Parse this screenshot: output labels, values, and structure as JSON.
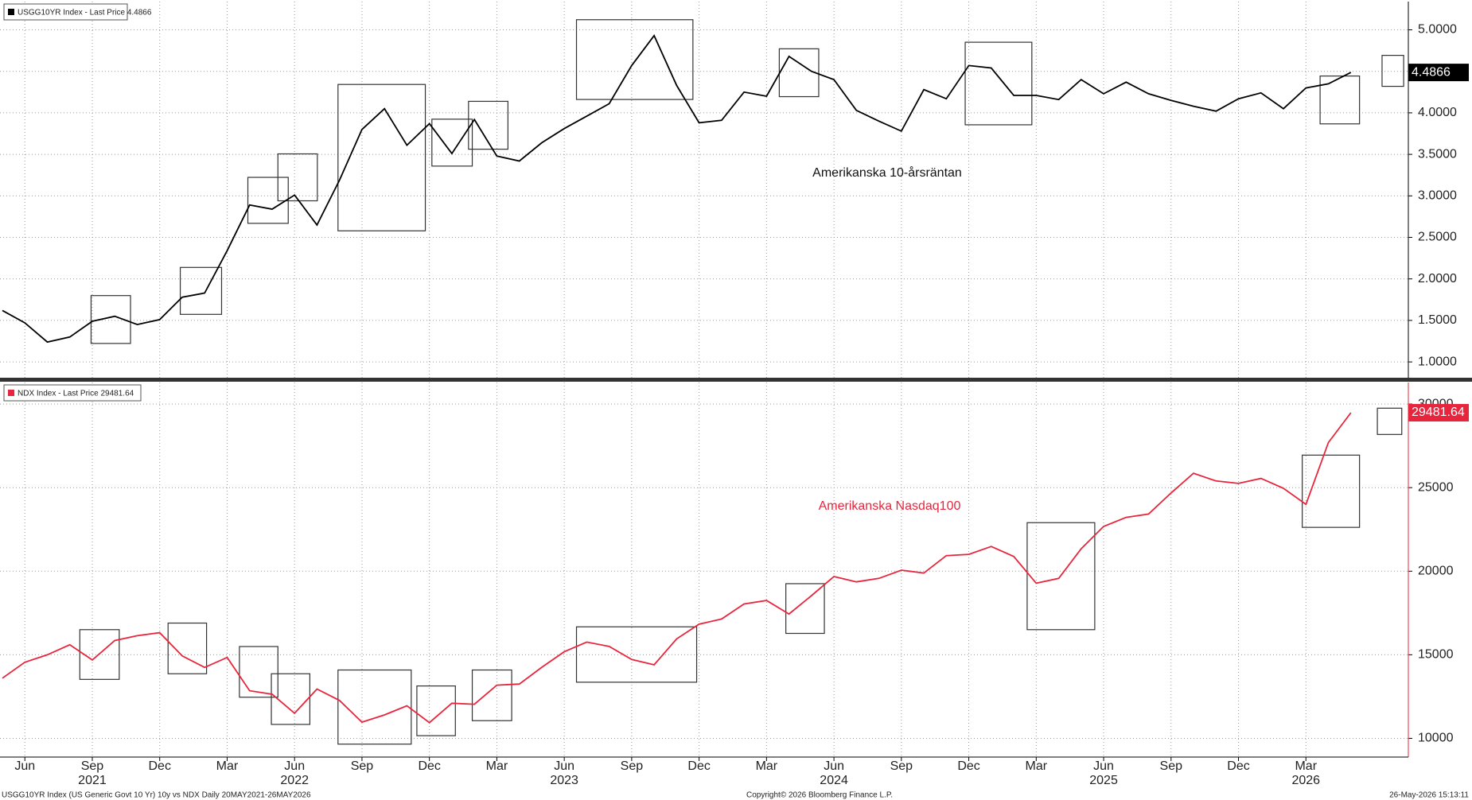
{
  "chart_data": [
    {
      "type": "line",
      "annotation": "Amerikanska 10-årsräntan",
      "x": [
        "2021-05",
        "2021-06",
        "2021-07",
        "2021-08",
        "2021-09",
        "2021-10",
        "2021-11",
        "2021-12",
        "2022-01",
        "2022-02",
        "2022-03",
        "2022-04",
        "2022-05",
        "2022-06",
        "2022-07",
        "2022-08",
        "2022-09",
        "2022-10",
        "2022-11",
        "2022-12",
        "2023-01",
        "2023-02",
        "2023-03",
        "2023-04",
        "2023-05",
        "2023-06",
        "2023-07",
        "2023-08",
        "2023-09",
        "2023-10",
        "2023-11",
        "2023-12",
        "2024-01",
        "2024-02",
        "2024-03",
        "2024-04",
        "2024-05",
        "2024-06",
        "2024-07",
        "2024-08",
        "2024-09",
        "2024-10",
        "2024-11",
        "2024-12",
        "2025-01",
        "2025-02",
        "2025-03",
        "2025-04",
        "2025-05",
        "2025-06",
        "2025-07",
        "2025-08",
        "2025-09",
        "2025-10",
        "2025-11",
        "2025-12",
        "2026-01",
        "2026-02",
        "2026-03",
        "2026-04",
        "2026-05"
      ],
      "xlim": [
        "2021-05",
        "2026-06"
      ],
      "series": [
        {
          "name": "USGG10YR Index - Last Price 4.4866",
          "color": "#000000",
          "values": [
            1.62,
            1.47,
            1.24,
            1.3,
            1.49,
            1.55,
            1.45,
            1.51,
            1.78,
            1.83,
            2.34,
            2.89,
            2.84,
            3.01,
            2.65,
            3.19,
            3.8,
            4.05,
            3.61,
            3.87,
            3.51,
            3.92,
            3.48,
            3.42,
            3.64,
            3.81,
            3.96,
            4.11,
            4.57,
            4.93,
            4.33,
            3.88,
            3.91,
            4.25,
            4.2,
            4.68,
            4.5,
            4.4,
            4.03,
            3.9,
            3.78,
            4.28,
            4.17,
            4.57,
            4.54,
            4.21,
            4.21,
            4.16,
            4.4,
            4.23,
            4.37,
            4.23,
            4.15,
            4.08,
            4.02,
            4.17,
            4.24,
            4.05,
            4.3,
            4.35,
            4.4866
          ]
        }
      ],
      "last_value": 4.4866,
      "ylim": [
        0.8,
        5.34
      ],
      "yticks": [
        {
          "value": 1,
          "label": "1.0000"
        },
        {
          "value": 1.5,
          "label": "1.5000"
        },
        {
          "value": 2,
          "label": "2.0000"
        },
        {
          "value": 2.5,
          "label": "2.5000"
        },
        {
          "value": 3,
          "label": "3.0000"
        },
        {
          "value": 3.5,
          "label": "3.5000"
        },
        {
          "value": 4,
          "label": "4.0000"
        },
        {
          "value": 4.5,
          "label": "4.5000"
        },
        {
          "value": 5,
          "label": "5.0000"
        }
      ],
      "grid": true
    },
    {
      "type": "line",
      "annotation": "Amerikanska Nasdaq100",
      "x": [
        "2021-05",
        "2021-06",
        "2021-07",
        "2021-08",
        "2021-09",
        "2021-10",
        "2021-11",
        "2021-12",
        "2022-01",
        "2022-02",
        "2022-03",
        "2022-04",
        "2022-05",
        "2022-06",
        "2022-07",
        "2022-08",
        "2022-09",
        "2022-10",
        "2022-11",
        "2022-12",
        "2023-01",
        "2023-02",
        "2023-03",
        "2023-04",
        "2023-05",
        "2023-06",
        "2023-07",
        "2023-08",
        "2023-09",
        "2023-10",
        "2023-11",
        "2023-12",
        "2024-01",
        "2024-02",
        "2024-03",
        "2024-04",
        "2024-05",
        "2024-06",
        "2024-07",
        "2024-08",
        "2024-09",
        "2024-10",
        "2024-11",
        "2024-12",
        "2025-01",
        "2025-02",
        "2025-03",
        "2025-04",
        "2025-05",
        "2025-06",
        "2025-07",
        "2025-08",
        "2025-09",
        "2025-10",
        "2025-11",
        "2025-12",
        "2026-01",
        "2026-02",
        "2026-03",
        "2026-04",
        "2026-05"
      ],
      "xlim": [
        "2021-05",
        "2026-06"
      ],
      "series": [
        {
          "name": "NDX Index - Last Price 29481.64",
          "color": "#e8253c",
          "values": [
            13600,
            14550,
            15000,
            15600,
            14690,
            15850,
            16140,
            16320,
            14930,
            14240,
            14840,
            12850,
            12640,
            11500,
            12950,
            12270,
            10970,
            11400,
            11950,
            10940,
            12100,
            12040,
            13180,
            13250,
            14250,
            15180,
            15760,
            15500,
            14720,
            14400,
            15950,
            16830,
            17140,
            18040,
            18250,
            17440,
            18540,
            19680,
            19360,
            19570,
            20060,
            19890,
            20930,
            21010,
            21480,
            20880,
            19280,
            19570,
            21340,
            22680,
            23220,
            23420,
            24680,
            25860,
            25400,
            25250,
            25550,
            24960,
            24000,
            27700,
            29481.64
          ]
        }
      ],
      "last_value": 29481.64,
      "ylim": [
        8880,
        31290
      ],
      "yticks": [
        10000,
        15000,
        20000,
        25000,
        30000
      ],
      "xticks": [
        {
          "value": "2021-06",
          "label": "Jun"
        },
        {
          "value": "2021-09",
          "label": "Sep"
        },
        {
          "value": "2021-12",
          "label": "Dec"
        },
        {
          "value": "2022-03",
          "label": "Mar"
        },
        {
          "value": "2022-06",
          "label": "Jun"
        },
        {
          "value": "2022-09",
          "label": "Sep"
        },
        {
          "value": "2022-12",
          "label": "Dec"
        },
        {
          "value": "2023-03",
          "label": "Mar"
        },
        {
          "value": "2023-06",
          "label": "Jun"
        },
        {
          "value": "2023-09",
          "label": "Sep"
        },
        {
          "value": "2023-12",
          "label": "Dec"
        },
        {
          "value": "2024-03",
          "label": "Mar"
        },
        {
          "value": "2024-06",
          "label": "Jun"
        },
        {
          "value": "2024-09",
          "label": "Sep"
        },
        {
          "value": "2024-12",
          "label": "Dec"
        },
        {
          "value": "2025-03",
          "label": "Mar"
        },
        {
          "value": "2025-06",
          "label": "Jun"
        },
        {
          "value": "2025-09",
          "label": "Sep"
        },
        {
          "value": "2025-12",
          "label": "Dec"
        },
        {
          "value": "2026-03",
          "label": "Mar"
        }
      ],
      "year_labels": [
        {
          "value": "2021-09",
          "label": "2021"
        },
        {
          "value": "2022-06",
          "label": "2022"
        },
        {
          "value": "2023-06",
          "label": "2023"
        },
        {
          "value": "2024-06",
          "label": "2024"
        },
        {
          "value": "2025-06",
          "label": "2025"
        },
        {
          "value": "2026-03",
          "label": "2026"
        }
      ],
      "grid": true
    }
  ],
  "footer": {
    "left": "USGG10YR Index (US Generic Govt 10 Yr) 10y vs NDX Daily 20MAY2021-26MAY2026",
    "center": "Copyright© 2026 Bloomberg Finance L.P.",
    "right": "26-May-2026 15:13:11"
  }
}
